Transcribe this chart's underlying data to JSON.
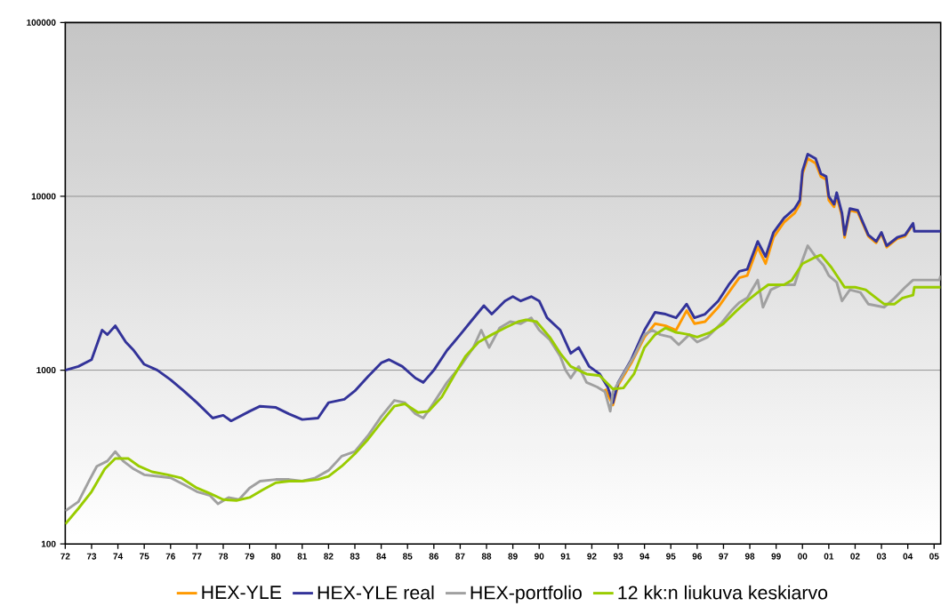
{
  "chart_data": {
    "type": "line",
    "log": "y",
    "grid": "y",
    "legend": "bottom",
    "marker": "none",
    "line_style": "solid",
    "xlim": [
      1972,
      2005.25
    ],
    "ylim": [
      100,
      100000
    ],
    "xticks": [
      {
        "value": 1972,
        "label": "72"
      },
      {
        "value": 1973,
        "label": "73"
      },
      {
        "value": 1974,
        "label": "74"
      },
      {
        "value": 1975,
        "label": "75"
      },
      {
        "value": 1976,
        "label": "76"
      },
      {
        "value": 1977,
        "label": "77"
      },
      {
        "value": 1978,
        "label": "78"
      },
      {
        "value": 1979,
        "label": "79"
      },
      {
        "value": 1980,
        "label": "80"
      },
      {
        "value": 1981,
        "label": "81"
      },
      {
        "value": 1982,
        "label": "82"
      },
      {
        "value": 1983,
        "label": "83"
      },
      {
        "value": 1984,
        "label": "84"
      },
      {
        "value": 1985,
        "label": "85"
      },
      {
        "value": 1986,
        "label": "86"
      },
      {
        "value": 1987,
        "label": "87"
      },
      {
        "value": 1988,
        "label": "88"
      },
      {
        "value": 1989,
        "label": "89"
      },
      {
        "value": 1990,
        "label": "90"
      },
      {
        "value": 1991,
        "label": "91"
      },
      {
        "value": 1992,
        "label": "92"
      },
      {
        "value": 1993,
        "label": "93"
      },
      {
        "value": 1994,
        "label": "94"
      },
      {
        "value": 1995,
        "label": "95"
      },
      {
        "value": 1996,
        "label": "96"
      },
      {
        "value": 1997,
        "label": "97"
      },
      {
        "value": 1998,
        "label": "98"
      },
      {
        "value": 1999,
        "label": "99"
      },
      {
        "value": 2000,
        "label": "00"
      },
      {
        "value": 2001,
        "label": "01"
      },
      {
        "value": 2002,
        "label": "02"
      },
      {
        "value": 2003,
        "label": "03"
      },
      {
        "value": 2004,
        "label": "04"
      },
      {
        "value": 2005,
        "label": "05"
      }
    ],
    "yticks": [
      100,
      1000,
      10000,
      100000
    ],
    "series": [
      {
        "name": "HEX-YLE",
        "color": "#ff9900",
        "x": [
          1992.5,
          1992.8,
          1993.0,
          1993.5,
          1994.0,
          1994.4,
          1994.8,
          1995.2,
          1995.6,
          1995.9,
          1996.3,
          1996.8,
          1997.2,
          1997.6,
          1997.9,
          1998.3,
          1998.6,
          1998.9,
          1999.3,
          1999.7,
          1999.9,
          2000.0,
          2000.2,
          2000.5,
          2000.7,
          2000.9,
          2001.0,
          2001.2,
          2001.3,
          2001.5,
          2001.6,
          2001.8,
          2002.1,
          2002.5,
          2002.8,
          2003.0,
          2003.2,
          2003.6,
          2003.9,
          2004.2
        ],
        "values": [
          780,
          630,
          820,
          1100,
          1550,
          1850,
          1800,
          1700,
          2200,
          1850,
          1900,
          2300,
          2800,
          3400,
          3500,
          5100,
          4100,
          5800,
          7100,
          8000,
          9000,
          13500,
          16500,
          15500,
          13000,
          12500,
          9500,
          8700,
          10000,
          7700,
          5800,
          8300,
          8100,
          5900,
          5400,
          6100,
          5100,
          5700,
          5900,
          6900
        ]
      },
      {
        "name": "HEX-YLE real",
        "color": "#333399",
        "x": [
          1972.0,
          1972.5,
          1973.0,
          1973.4,
          1973.6,
          1973.9,
          1974.3,
          1974.6,
          1975.0,
          1975.5,
          1976.0,
          1976.5,
          1977.0,
          1977.6,
          1978.0,
          1978.3,
          1979.0,
          1979.4,
          1980.0,
          1980.5,
          1981.0,
          1981.6,
          1982.0,
          1982.6,
          1983.0,
          1983.5,
          1984.0,
          1984.3,
          1984.8,
          1985.3,
          1985.6,
          1986.0,
          1986.5,
          1987.0,
          1987.4,
          1987.9,
          1988.2,
          1988.7,
          1989.0,
          1989.3,
          1989.7,
          1990.0,
          1990.3,
          1990.8,
          1991.2,
          1991.5,
          1991.9,
          1992.3,
          1992.6,
          1992.8,
          1993.0,
          1993.5,
          1994.0,
          1994.4,
          1994.8,
          1995.2,
          1995.6,
          1995.9,
          1996.3,
          1996.8,
          1997.2,
          1997.6,
          1997.9,
          1998.3,
          1998.6,
          1998.9,
          1999.3,
          1999.7,
          1999.9,
          2000.0,
          2000.2,
          2000.5,
          2000.7,
          2000.9,
          2001.0,
          2001.2,
          2001.3,
          2001.5,
          2001.6,
          2001.8,
          2002.1,
          2002.5,
          2002.8,
          2003.0,
          2003.2,
          2003.6,
          2003.9,
          2004.2,
          2004.25,
          2005.25
        ],
        "values": [
          1000,
          1050,
          1150,
          1700,
          1600,
          1800,
          1450,
          1300,
          1080,
          1000,
          880,
          760,
          650,
          530,
          550,
          510,
          580,
          620,
          610,
          560,
          520,
          530,
          650,
          680,
          760,
          920,
          1100,
          1150,
          1050,
          900,
          850,
          1000,
          1300,
          1600,
          1900,
          2350,
          2100,
          2500,
          2650,
          2500,
          2650,
          2500,
          2000,
          1700,
          1250,
          1350,
          1050,
          950,
          800,
          650,
          850,
          1150,
          1700,
          2150,
          2100,
          2000,
          2400,
          2000,
          2100,
          2500,
          3100,
          3700,
          3800,
          5500,
          4500,
          6200,
          7500,
          8500,
          9500,
          14000,
          17500,
          16500,
          13500,
          13000,
          10000,
          9000,
          10500,
          8000,
          6000,
          8500,
          8300,
          6000,
          5500,
          6200,
          5200,
          5800,
          6000,
          7000,
          6300,
          6300
        ]
      },
      {
        "name": "HEX-portfolio",
        "color": "#a0a0a0",
        "x": [
          1972.0,
          1972.5,
          1972.9,
          1973.2,
          1973.6,
          1973.9,
          1974.2,
          1974.6,
          1975.0,
          1975.5,
          1976.0,
          1976.5,
          1977.0,
          1977.5,
          1977.8,
          1978.2,
          1978.6,
          1979.0,
          1979.4,
          1980.0,
          1980.5,
          1981.0,
          1981.5,
          1982.0,
          1982.5,
          1983.0,
          1983.5,
          1984.0,
          1984.5,
          1984.9,
          1985.3,
          1985.6,
          1986.0,
          1986.5,
          1987.0,
          1987.5,
          1987.8,
          1988.1,
          1988.5,
          1988.9,
          1989.3,
          1989.7,
          1990.0,
          1990.4,
          1990.8,
          1991.0,
          1991.2,
          1991.5,
          1991.8,
          1992.2,
          1992.5,
          1992.7,
          1992.8,
          1993.2,
          1993.6,
          1994.0,
          1994.3,
          1994.6,
          1995.0,
          1995.3,
          1995.7,
          1996.0,
          1996.4,
          1996.9,
          1997.3,
          1997.6,
          1997.9,
          1998.3,
          1998.5,
          1998.8,
          1999.2,
          1999.7,
          2000.0,
          2000.2,
          2000.5,
          2000.8,
          2001.0,
          2001.3,
          2001.5,
          2001.8,
          2002.2,
          2002.5,
          2002.8,
          2003.1,
          2003.5,
          2003.9,
          2004.2,
          2005.2,
          2005.25
        ],
        "values": [
          155,
          175,
          230,
          280,
          300,
          340,
          300,
          270,
          250,
          245,
          240,
          220,
          200,
          190,
          170,
          185,
          180,
          210,
          230,
          235,
          235,
          230,
          240,
          265,
          320,
          340,
          420,
          540,
          670,
          650,
          560,
          530,
          650,
          850,
          1050,
          1350,
          1700,
          1350,
          1750,
          1900,
          1850,
          2000,
          1700,
          1500,
          1200,
          1000,
          900,
          1050,
          850,
          800,
          750,
          580,
          750,
          950,
          1200,
          1600,
          1700,
          1600,
          1550,
          1400,
          1600,
          1450,
          1550,
          1850,
          2200,
          2450,
          2600,
          3300,
          2300,
          2900,
          3100,
          3100,
          4300,
          5200,
          4500,
          4000,
          3500,
          3200,
          2500,
          2900,
          2800,
          2400,
          2350,
          2300,
          2600,
          3000,
          3300,
          3300,
          3500
        ]
      },
      {
        "name": "12 kk:n liukuva keskiarvo",
        "color": "#99cc00",
        "x": [
          1972.0,
          1972.5,
          1973.0,
          1973.5,
          1973.9,
          1974.4,
          1974.8,
          1975.3,
          1975.9,
          1976.4,
          1977.0,
          1977.5,
          1978.0,
          1978.5,
          1979.0,
          1979.5,
          1980.0,
          1980.5,
          1981.0,
          1981.6,
          1982.0,
          1982.5,
          1983.0,
          1983.5,
          1984.0,
          1984.5,
          1984.9,
          1985.4,
          1985.8,
          1986.3,
          1986.8,
          1987.2,
          1987.7,
          1988.2,
          1988.7,
          1989.2,
          1989.5,
          1989.9,
          1990.4,
          1990.8,
          1991.2,
          1991.8,
          1992.3,
          1992.8,
          1993.2,
          1993.6,
          1994.0,
          1994.4,
          1994.8,
          1995.2,
          1995.7,
          1996.0,
          1996.5,
          1997.0,
          1997.5,
          1997.9,
          1998.3,
          1998.7,
          1999.3,
          1999.6,
          2000.0,
          2000.4,
          2000.7,
          2001.1,
          2001.6,
          2002.0,
          2002.4,
          2002.8,
          2003.1,
          2003.5,
          2003.8,
          2004.2,
          2004.25,
          2005.25
        ],
        "values": [
          130,
          160,
          200,
          270,
          310,
          310,
          280,
          260,
          250,
          240,
          210,
          195,
          180,
          178,
          185,
          205,
          225,
          230,
          230,
          235,
          245,
          280,
          330,
          400,
          500,
          620,
          640,
          570,
          580,
          700,
          950,
          1200,
          1450,
          1600,
          1750,
          1900,
          1950,
          1900,
          1550,
          1250,
          1050,
          950,
          930,
          780,
          790,
          950,
          1350,
          1600,
          1750,
          1650,
          1600,
          1550,
          1650,
          1850,
          2200,
          2500,
          2800,
          3100,
          3100,
          3300,
          4100,
          4400,
          4600,
          3900,
          3000,
          3000,
          2900,
          2600,
          2400,
          2400,
          2600,
          2700,
          3000,
          3000
        ]
      }
    ]
  }
}
